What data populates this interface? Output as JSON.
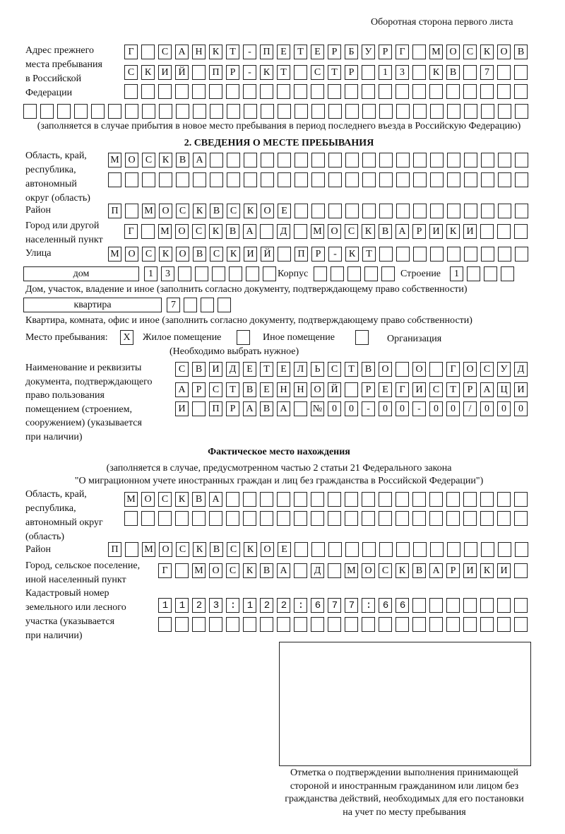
{
  "header": {
    "side_title": "Оборотная сторона первого листа"
  },
  "prev_address": {
    "label": [
      "Адрес прежнего",
      "места пребывания",
      "в Российской",
      "Федерации"
    ],
    "rows": [
      "Г САНКТ-ПЕТЕРБУРГ МОСКОВ",
      "СКИЙ ПР-КТ СТР 13 КВ 7",
      "",
      ""
    ],
    "note": "(заполняется в случае прибытия в новое место пребывания в период последнего въезда в Российскую Федерацию)"
  },
  "section2": {
    "title": "2. СВЕДЕНИЯ О МЕСТЕ ПРЕБЫВАНИЯ",
    "region_label": [
      "Область, край,",
      "республика,",
      "автономный",
      "округ (область)"
    ],
    "region_rows": [
      "МОСКВА",
      ""
    ],
    "district_label": "Район",
    "district": "П МОСКВСКОЕ",
    "city_label": [
      "Город или другой",
      "населенный пункт"
    ],
    "city": "Г МОСКВА Д МОСКВАРИКИ",
    "street_label": "Улица",
    "street": "МОСКОВСКИЙ ПР-КТ",
    "house_type": "дом",
    "house_number": "13",
    "korpus_label": "Корпус",
    "korpus": "",
    "building_label": "Строение",
    "building": "1",
    "house_note": "Дом, участок, владение и иное (заполнить согласно документу, подтверждающему право собственности)",
    "apartment_type": "квартира",
    "apartment_number": "7",
    "apartment_note": "Квартира, комната, офис и иное (заполнить согласно документу, подтверждающему право собственности)",
    "place_label": "Место пребывания:",
    "place_options": [
      {
        "label": "Жилое помещение",
        "mark": "X"
      },
      {
        "label": "Иное помещение",
        "mark": ""
      },
      {
        "label": "Организация",
        "mark": ""
      }
    ],
    "place_note": "(Необходимо выбрать нужное)",
    "doc_label": [
      "Наименование и реквизиты",
      "документа, подтверждающего",
      "право пользования",
      "помещением (строением,",
      "сооружением) (указывается",
      "при наличии)"
    ],
    "doc_rows": [
      "СВИДЕТЕЛЬСТВО О ГОСУД",
      "АРСТВЕННОЙ РЕГИСТРАЦИ",
      "И ПРАВА №00-00-00/000"
    ]
  },
  "actual": {
    "title": "Фактическое место нахождения",
    "note": [
      "(заполняется в случае, предусмотренном частью 2 статьи 21 Федерального закона",
      "\"О миграционном учете иностранных граждан и лиц без гражданства в Российской Федерации\")"
    ],
    "region_label": [
      "Область, край,",
      "республика,",
      "автономный округ",
      "(область)"
    ],
    "region_rows": [
      "МОСКВА",
      ""
    ],
    "district_label": "Район",
    "district": "П МОСКВСКОЕ",
    "city_label": [
      "Город, сельское поселение,",
      "иной населенный пункт"
    ],
    "city": "Г МОСКВА Д МОСКВАРИКИ",
    "cadastral_label": [
      "Кадастровый номер",
      "земельного или лесного",
      "участка (указывается",
      "при наличии)"
    ],
    "cadastral_rows": [
      "1123:122:677:66",
      ""
    ]
  },
  "stamp": {
    "caption": [
      "Отметка о подтверждении выполнения принимающей",
      "стороной и иностранным гражданином или лицом без",
      "гражданства действий, необходимых для его постановки",
      "на учет по месту пребывания"
    ]
  }
}
